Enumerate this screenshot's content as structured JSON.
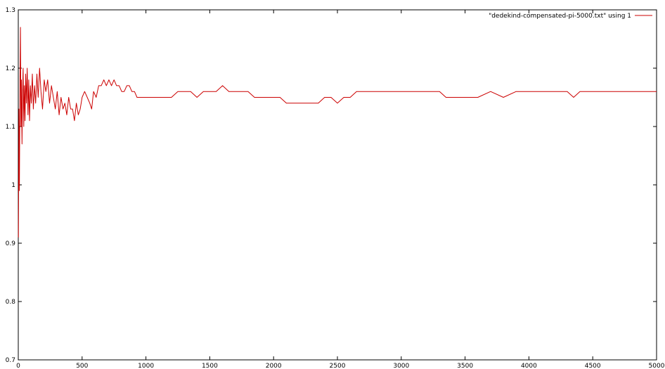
{
  "chart_data": {
    "type": "line",
    "title": "",
    "xlabel": "",
    "ylabel": "",
    "xlim": [
      0,
      5000
    ],
    "ylim": [
      0.7,
      1.3
    ],
    "xticks": [
      0,
      500,
      1000,
      1500,
      2000,
      2500,
      3000,
      3500,
      4000,
      4500,
      5000
    ],
    "yticks": [
      "0.7",
      "0.8",
      "0.9",
      "1",
      "1.1",
      "1.2",
      "1.3"
    ],
    "grid": false,
    "legend_position": "top-right",
    "series": [
      {
        "name": "\"dedekind-compensated-pi-5000.txt\" using 1",
        "color": "#cc0000",
        "points": [
          [
            1,
            0.91
          ],
          [
            5,
            1.13
          ],
          [
            9,
            0.99
          ],
          [
            13,
            1.18
          ],
          [
            17,
            1.27
          ],
          [
            21,
            1.1
          ],
          [
            25,
            1.18
          ],
          [
            29,
            1.07
          ],
          [
            33,
            1.15
          ],
          [
            38,
            1.2
          ],
          [
            43,
            1.1
          ],
          [
            48,
            1.17
          ],
          [
            53,
            1.11
          ],
          [
            58,
            1.19
          ],
          [
            64,
            1.14
          ],
          [
            70,
            1.2
          ],
          [
            76,
            1.12
          ],
          [
            82,
            1.18
          ],
          [
            88,
            1.11
          ],
          [
            95,
            1.17
          ],
          [
            102,
            1.14
          ],
          [
            110,
            1.19
          ],
          [
            118,
            1.13
          ],
          [
            127,
            1.17
          ],
          [
            136,
            1.14
          ],
          [
            146,
            1.19
          ],
          [
            156,
            1.15
          ],
          [
            167,
            1.2
          ],
          [
            178,
            1.16
          ],
          [
            190,
            1.13
          ],
          [
            203,
            1.18
          ],
          [
            216,
            1.16
          ],
          [
            230,
            1.18
          ],
          [
            245,
            1.14
          ],
          [
            260,
            1.17
          ],
          [
            275,
            1.15
          ],
          [
            290,
            1.13
          ],
          [
            305,
            1.16
          ],
          [
            320,
            1.12
          ],
          [
            335,
            1.15
          ],
          [
            350,
            1.13
          ],
          [
            365,
            1.14
          ],
          [
            380,
            1.12
          ],
          [
            395,
            1.15
          ],
          [
            410,
            1.13
          ],
          [
            425,
            1.13
          ],
          [
            440,
            1.11
          ],
          [
            455,
            1.14
          ],
          [
            470,
            1.12
          ],
          [
            485,
            1.13
          ],
          [
            500,
            1.15
          ],
          [
            520,
            1.16
          ],
          [
            540,
            1.15
          ],
          [
            560,
            1.14
          ],
          [
            575,
            1.13
          ],
          [
            590,
            1.16
          ],
          [
            610,
            1.15
          ],
          [
            630,
            1.17
          ],
          [
            650,
            1.17
          ],
          [
            670,
            1.18
          ],
          [
            690,
            1.17
          ],
          [
            710,
            1.18
          ],
          [
            730,
            1.17
          ],
          [
            750,
            1.18
          ],
          [
            770,
            1.17
          ],
          [
            790,
            1.17
          ],
          [
            810,
            1.16
          ],
          [
            830,
            1.16
          ],
          [
            850,
            1.17
          ],
          [
            870,
            1.17
          ],
          [
            890,
            1.16
          ],
          [
            910,
            1.16
          ],
          [
            930,
            1.15
          ],
          [
            950,
            1.15
          ],
          [
            975,
            1.15
          ],
          [
            1000,
            1.15
          ],
          [
            1050,
            1.15
          ],
          [
            1100,
            1.15
          ],
          [
            1150,
            1.15
          ],
          [
            1200,
            1.15
          ],
          [
            1250,
            1.16
          ],
          [
            1300,
            1.16
          ],
          [
            1350,
            1.16
          ],
          [
            1400,
            1.15
          ],
          [
            1450,
            1.16
          ],
          [
            1500,
            1.16
          ],
          [
            1550,
            1.16
          ],
          [
            1600,
            1.17
          ],
          [
            1650,
            1.16
          ],
          [
            1700,
            1.16
          ],
          [
            1750,
            1.16
          ],
          [
            1800,
            1.16
          ],
          [
            1850,
            1.15
          ],
          [
            1900,
            1.15
          ],
          [
            1950,
            1.15
          ],
          [
            2000,
            1.15
          ],
          [
            2050,
            1.15
          ],
          [
            2100,
            1.14
          ],
          [
            2150,
            1.14
          ],
          [
            2200,
            1.14
          ],
          [
            2250,
            1.14
          ],
          [
            2300,
            1.14
          ],
          [
            2350,
            1.14
          ],
          [
            2400,
            1.15
          ],
          [
            2450,
            1.15
          ],
          [
            2500,
            1.14
          ],
          [
            2550,
            1.15
          ],
          [
            2600,
            1.15
          ],
          [
            2650,
            1.16
          ],
          [
            2700,
            1.16
          ],
          [
            2750,
            1.16
          ],
          [
            2800,
            1.16
          ],
          [
            2850,
            1.16
          ],
          [
            2900,
            1.16
          ],
          [
            2950,
            1.16
          ],
          [
            3000,
            1.16
          ],
          [
            3100,
            1.16
          ],
          [
            3200,
            1.16
          ],
          [
            3300,
            1.16
          ],
          [
            3350,
            1.15
          ],
          [
            3400,
            1.15
          ],
          [
            3450,
            1.15
          ],
          [
            3500,
            1.15
          ],
          [
            3600,
            1.15
          ],
          [
            3700,
            1.16
          ],
          [
            3800,
            1.15
          ],
          [
            3900,
            1.16
          ],
          [
            4000,
            1.16
          ],
          [
            4100,
            1.16
          ],
          [
            4200,
            1.16
          ],
          [
            4300,
            1.16
          ],
          [
            4350,
            1.15
          ],
          [
            4400,
            1.16
          ],
          [
            4500,
            1.16
          ],
          [
            4600,
            1.16
          ],
          [
            4700,
            1.16
          ],
          [
            4800,
            1.16
          ],
          [
            4900,
            1.16
          ],
          [
            5000,
            1.16
          ]
        ]
      }
    ]
  }
}
